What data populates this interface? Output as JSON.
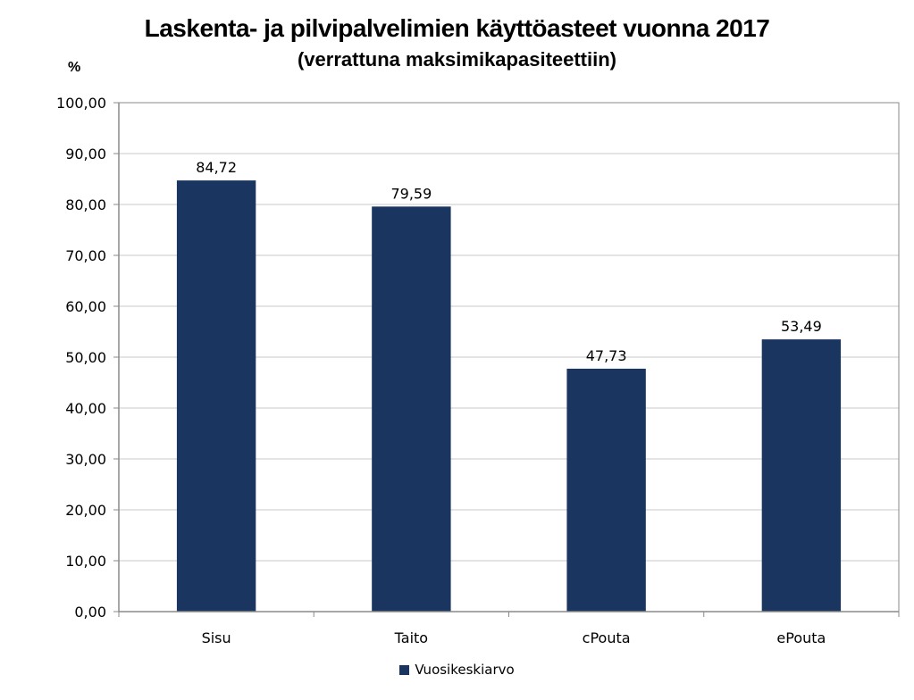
{
  "title": "Laskenta- ja pilvipalvelimien käyttöasteet vuonna 2017",
  "subtitle": "(verrattuna maksimikapasiteettiin)",
  "unit": "%",
  "colors": {
    "bar": "#1a3560",
    "grid": "#c9c9c9",
    "axis": "#8a8a8a",
    "frame": "#8a8a8a"
  },
  "chart_data": {
    "type": "bar",
    "title": "Laskenta- ja pilvipalvelimien käyttöasteet vuonna 2017",
    "subtitle": "(verrattuna maksimikapasiteettiin)",
    "ylabel": "%",
    "xlabel": "",
    "categories": [
      "Sisu",
      "Taito",
      "cPouta",
      "ePouta"
    ],
    "series": [
      {
        "name": "Vuosikeskiarvo",
        "values": [
          84.72,
          79.59,
          47.73,
          53.49
        ]
      }
    ],
    "data_labels": [
      "84,72",
      "79,59",
      "47,73",
      "53,49"
    ],
    "ylim": [
      0,
      100
    ],
    "yticks": [
      0,
      10,
      20,
      30,
      40,
      50,
      60,
      70,
      80,
      90,
      100
    ],
    "ytick_labels": [
      "0,00",
      "10,00",
      "20,00",
      "30,00",
      "40,00",
      "50,00",
      "60,00",
      "70,00",
      "80,00",
      "90,00",
      "100,00"
    ],
    "grid": true,
    "legend_position": "bottom"
  }
}
